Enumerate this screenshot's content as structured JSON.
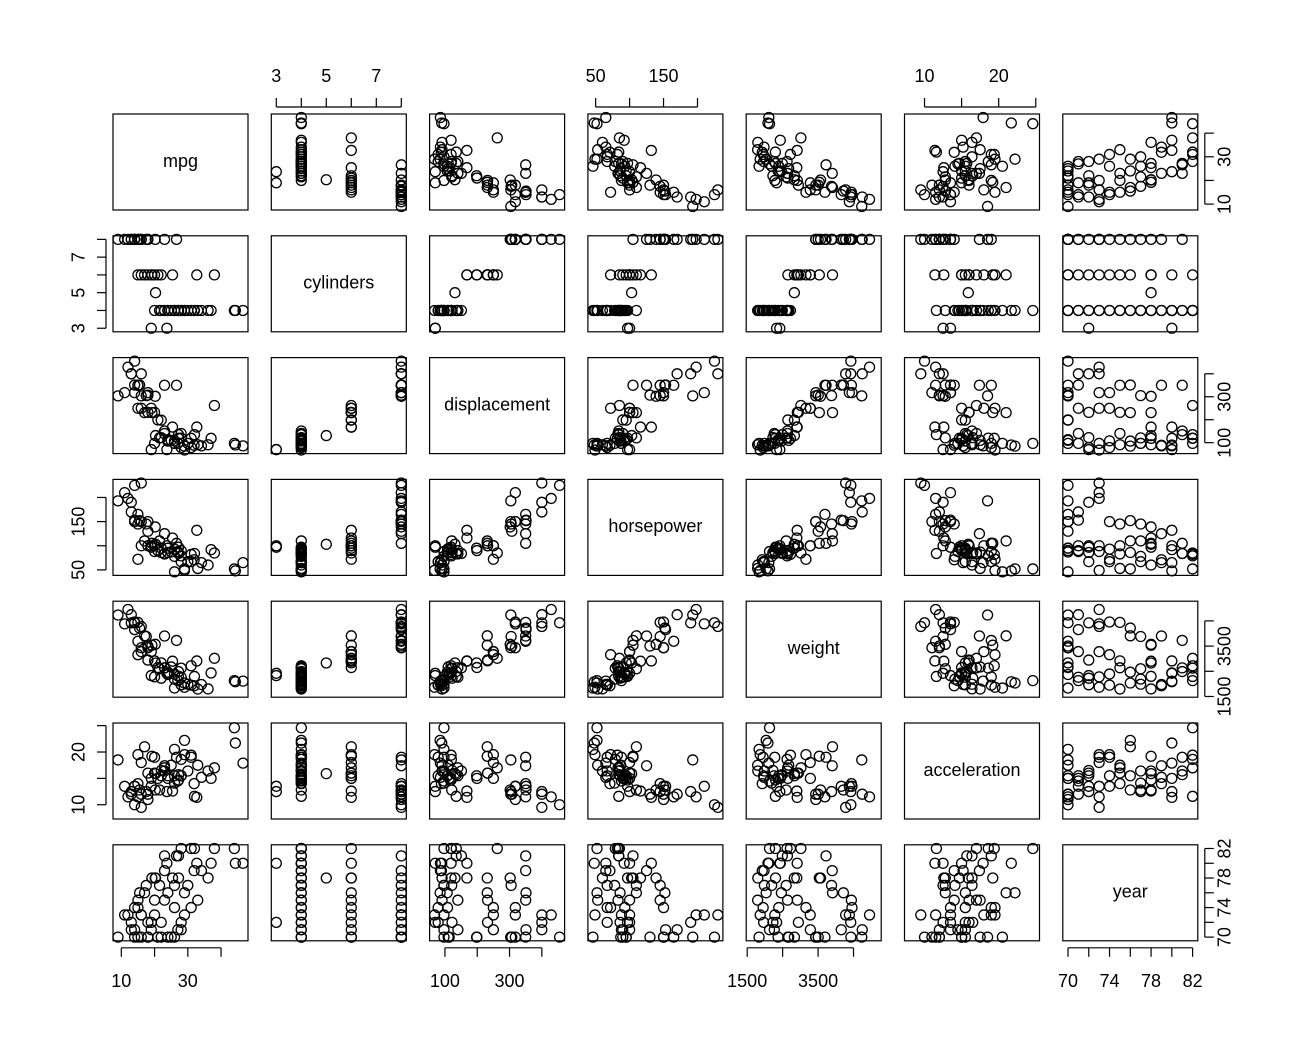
{
  "chart_data": {
    "type": "scatter_matrix",
    "variables": [
      {
        "name": "mpg",
        "lim": [
          7.5,
          48.1
        ],
        "ticks": [
          10,
          20,
          30,
          40
        ],
        "labeled_ticks": [
          10,
          30
        ]
      },
      {
        "name": "cylinders",
        "lim": [
          2.8,
          8.2
        ],
        "ticks": [
          3,
          4,
          5,
          6,
          7,
          8
        ],
        "labeled_ticks": [
          3,
          5,
          7
        ]
      },
      {
        "name": "displacement",
        "lim": [
          52.5,
          470.5
        ],
        "ticks": [
          100,
          200,
          300,
          400
        ],
        "labeled_ticks": [
          100,
          300
        ]
      },
      {
        "name": "horsepower",
        "lim": [
          38.6,
          237.4
        ],
        "ticks": [
          50,
          100,
          150,
          200
        ],
        "labeled_ticks": [
          50,
          150
        ]
      },
      {
        "name": "weight",
        "lim": [
          1472,
          5281
        ],
        "ticks": [
          1500,
          2500,
          3500,
          4500
        ],
        "labeled_ticks": [
          1500,
          3500
        ]
      },
      {
        "name": "acceleration",
        "lim": [
          7.3,
          25.5
        ],
        "ticks": [
          10,
          15,
          20,
          25
        ],
        "labeled_ticks": [
          10,
          20
        ]
      },
      {
        "name": "year",
        "lim": [
          69.5,
          82.5
        ],
        "ticks": [
          70,
          72,
          74,
          76,
          78,
          80,
          82
        ],
        "labeled_ticks": [
          70,
          74,
          78,
          82
        ]
      }
    ],
    "rows": [
      [
        18,
        8,
        307,
        130,
        3504,
        12,
        70
      ],
      [
        15,
        8,
        350,
        165,
        3693,
        11.5,
        70
      ],
      [
        18,
        8,
        318,
        150,
        3436,
        11,
        70
      ],
      [
        16,
        8,
        304,
        150,
        3433,
        12,
        70
      ],
      [
        14,
        8,
        455,
        225,
        4425,
        10,
        70
      ],
      [
        24,
        4,
        113,
        95,
        2372,
        15,
        70
      ],
      [
        22,
        6,
        198,
        95,
        2833,
        15.5,
        70
      ],
      [
        26,
        4,
        97,
        46,
        1835,
        20.5,
        70
      ],
      [
        25,
        4,
        110,
        87,
        2672,
        17.5,
        70
      ],
      [
        21,
        6,
        199,
        90,
        2648,
        15,
        70
      ],
      [
        27,
        4,
        97,
        88,
        2130,
        14.5,
        71
      ],
      [
        28,
        4,
        140,
        90,
        2264,
        15.5,
        71
      ],
      [
        19,
        6,
        250,
        100,
        3282,
        15,
        71
      ],
      [
        13,
        8,
        400,
        170,
        4746,
        12,
        71
      ],
      [
        14,
        8,
        351,
        153,
        4154,
        13.5,
        71
      ],
      [
        22,
        4,
        122,
        86,
        2226,
        16.5,
        72
      ],
      [
        18,
        6,
        232,
        100,
        2945,
        16,
        72
      ],
      [
        13,
        8,
        400,
        190,
        4422,
        12.5,
        72
      ],
      [
        28,
        4,
        79,
        67,
        1963,
        15.5,
        72
      ],
      [
        12,
        8,
        429,
        198,
        4952,
        11.5,
        73
      ],
      [
        16,
        6,
        250,
        100,
        3278,
        18,
        73
      ],
      [
        20,
        4,
        97,
        88,
        2279,
        19,
        73
      ],
      [
        11,
        8,
        318,
        210,
        4382,
        13.5,
        73
      ],
      [
        29,
        4,
        68,
        49,
        1867,
        19.5,
        73
      ],
      [
        26,
        4,
        108,
        93,
        2391,
        15.5,
        74
      ],
      [
        15,
        6,
        250,
        72,
        3158,
        19.5,
        74
      ],
      [
        31,
        4,
        79,
        67,
        1950,
        19,
        74
      ],
      [
        14,
        8,
        318,
        150,
        4457,
        13.5,
        74
      ],
      [
        20,
        6,
        232,
        100,
        2914,
        16,
        75
      ],
      [
        23,
        4,
        140,
        83,
        2639,
        17,
        75
      ],
      [
        15,
        8,
        350,
        145,
        4440,
        14,
        75
      ],
      [
        33,
        4,
        91,
        53,
        1795,
        17.5,
        75
      ],
      [
        24,
        4,
        107,
        86,
        2464,
        15.5,
        76
      ],
      [
        17,
        6,
        231,
        110,
        3907,
        21,
        76
      ],
      [
        29,
        4,
        85,
        52,
        2035,
        22.2,
        76
      ],
      [
        15.5,
        8,
        351,
        152,
        4215,
        12.8,
        76
      ],
      [
        26,
        4,
        97,
        78,
        2190,
        14.1,
        77
      ],
      [
        21.5,
        4,
        121,
        110,
        2600,
        12.8,
        77
      ],
      [
        17.5,
        8,
        305,
        145,
        3880,
        12.5,
        77
      ],
      [
        30,
        4,
        97,
        67,
        1985,
        16.4,
        77
      ],
      [
        36.1,
        4,
        91,
        60,
        1800,
        16.4,
        78
      ],
      [
        19.2,
        6,
        231,
        105,
        3535,
        19.2,
        78
      ],
      [
        25.4,
        6,
        168,
        116,
        2900,
        12.6,
        78
      ],
      [
        20.2,
        8,
        302,
        139,
        3570,
        12.8,
        78
      ],
      [
        31.9,
        4,
        89,
        71,
        1925,
        14,
        79
      ],
      [
        27.2,
        4,
        119,
        97,
        2300,
        14.7,
        78
      ],
      [
        23,
        8,
        350,
        125,
        3900,
        17.4,
        79
      ],
      [
        34.1,
        4,
        86,
        65,
        1975,
        15.2,
        79
      ],
      [
        20.3,
        5,
        131,
        103,
        2830,
        15.9,
        78
      ],
      [
        44.3,
        4,
        90,
        48,
        2085,
        21.7,
        80
      ],
      [
        32.7,
        6,
        168,
        132,
        2910,
        11.4,
        80
      ],
      [
        27.2,
        4,
        135,
        84,
        2490,
        15.7,
        81
      ],
      [
        26.6,
        8,
        350,
        105,
        3725,
        19,
        81
      ],
      [
        37,
        4,
        119,
        92,
        2434,
        15,
        80
      ],
      [
        23,
        4,
        151,
        84,
        2635,
        16.4,
        81
      ],
      [
        38,
        6,
        262,
        85,
        3015,
        17,
        82
      ],
      [
        44,
        4,
        97,
        52,
        2130,
        24.6,
        82
      ],
      [
        32,
        4,
        135,
        84,
        2295,
        11.6,
        82
      ],
      [
        28,
        4,
        120,
        79,
        2625,
        18.6,
        82
      ],
      [
        31,
        4,
        119,
        82,
        2720,
        19.4,
        82
      ],
      [
        16,
        8,
        400,
        230,
        4278,
        9.5,
        73
      ],
      [
        46.6,
        4,
        86,
        65,
        2110,
        17.9,
        80
      ],
      [
        9,
        8,
        304,
        193,
        4732,
        18.5,
        70
      ],
      [
        19,
        3,
        70,
        97,
        2330,
        13.5,
        72
      ],
      [
        23.7,
        3,
        70,
        100,
        2420,
        12.5,
        80
      ]
    ]
  }
}
